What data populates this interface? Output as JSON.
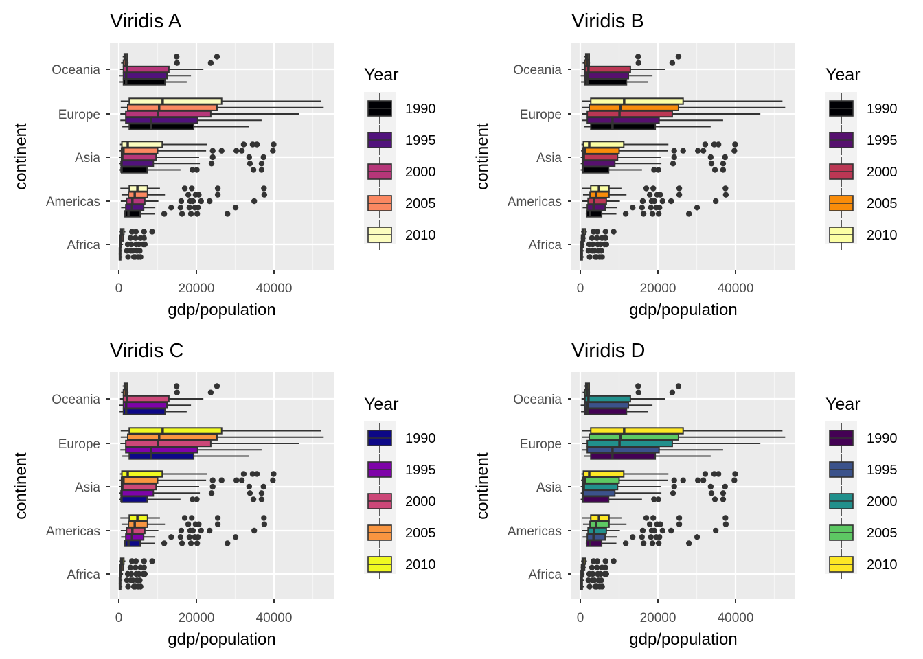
{
  "figure": {
    "panels": [
      "Viridis A",
      "Viridis B",
      "Viridis C",
      "Viridis D"
    ]
  },
  "chart_data": [
    {
      "type": "boxplot",
      "title": "Viridis A",
      "xlabel": "gdp/population",
      "ylabel": "continent",
      "xlim": [
        -2000,
        55000
      ],
      "xticks": [
        0,
        20000,
        40000
      ],
      "xtick_labels": [
        "0",
        "20000",
        "40000"
      ],
      "grid": true,
      "legend": {
        "title": "Year",
        "position": "right",
        "labels": [
          "1990",
          "1995",
          "2000",
          "2005",
          "2010"
        ],
        "colors": [
          "#000004",
          "#51127C",
          "#B63679",
          "#FB8861",
          "#FCFDBF"
        ]
      }
    },
    {
      "type": "boxplot",
      "title": "Viridis B",
      "xlabel": "gdp/population",
      "ylabel": "continent",
      "xlim": [
        -2000,
        55000
      ],
      "xticks": [
        0,
        20000,
        40000
      ],
      "xtick_labels": [
        "0",
        "20000",
        "40000"
      ],
      "grid": true,
      "legend": {
        "title": "Year",
        "position": "right",
        "labels": [
          "1990",
          "1995",
          "2000",
          "2005",
          "2010"
        ],
        "colors": [
          "#000004",
          "#56106E",
          "#BB3754",
          "#F98C0A",
          "#FCFFA4"
        ]
      }
    },
    {
      "type": "boxplot",
      "title": "Viridis C",
      "xlabel": "gdp/population",
      "ylabel": "continent",
      "xlim": [
        -2000,
        55000
      ],
      "xticks": [
        0,
        20000,
        40000
      ],
      "xtick_labels": [
        "0",
        "20000",
        "40000"
      ],
      "grid": true,
      "legend": {
        "title": "Year",
        "position": "right",
        "labels": [
          "1990",
          "1995",
          "2000",
          "2005",
          "2010"
        ],
        "colors": [
          "#0D0887",
          "#7E03A8",
          "#CC4778",
          "#F89540",
          "#F0F921"
        ]
      }
    },
    {
      "type": "boxplot",
      "title": "Viridis D",
      "xlabel": "gdp/population",
      "ylabel": "continent",
      "xlim": [
        -2000,
        55000
      ],
      "xticks": [
        0,
        20000,
        40000
      ],
      "xtick_labels": [
        "0",
        "20000",
        "40000"
      ],
      "grid": true,
      "legend": {
        "title": "Year",
        "position": "right",
        "labels": [
          "1990",
          "1995",
          "2000",
          "2005",
          "2010"
        ],
        "colors": [
          "#440154",
          "#3B528B",
          "#21908C",
          "#5DC863",
          "#FDE725"
        ]
      }
    }
  ],
  "shared_data": {
    "categories": [
      "Africa",
      "Americas",
      "Asia",
      "Europe",
      "Oceania"
    ],
    "groups": [
      "1990",
      "1995",
      "2000",
      "2005",
      "2010"
    ],
    "stats": {
      "Oceania": [
        {
          "lo": 200,
          "q1": 1200,
          "med": 1900,
          "q3": 11900,
          "hi": 17500,
          "out": []
        },
        {
          "lo": 100,
          "q1": 1200,
          "med": 1900,
          "q3": 12400,
          "hi": 18600,
          "out": []
        },
        {
          "lo": 300,
          "q1": 1200,
          "med": 2100,
          "q3": 12900,
          "hi": 21800,
          "out": []
        },
        {
          "lo": 600,
          "q1": 1200,
          "med": 1800,
          "q3": 2300,
          "hi": 2500,
          "out": [
            15000,
            23700
          ]
        },
        {
          "lo": 1000,
          "q1": 1400,
          "med": 1800,
          "q3": 2300,
          "hi": 2400,
          "out": [
            14900,
            25300
          ]
        }
      ],
      "Europe": [
        {
          "lo": 900,
          "q1": 2700,
          "med": 8300,
          "q3": 19300,
          "hi": 33600,
          "out": []
        },
        {
          "lo": 400,
          "q1": 1800,
          "med": 8300,
          "q3": 20300,
          "hi": 36800,
          "out": []
        },
        {
          "lo": 400,
          "q1": 1800,
          "med": 10100,
          "q3": 23700,
          "hi": 46400,
          "out": []
        },
        {
          "lo": 500,
          "q1": 2300,
          "med": 10400,
          "q3": 25300,
          "hi": 52800,
          "out": []
        },
        {
          "lo": 500,
          "q1": 2700,
          "med": 11300,
          "q3": 26500,
          "hi": 52100,
          "out": []
        }
      ],
      "Asia": [
        {
          "lo": 100,
          "q1": 700,
          "med": 700,
          "q3": 7300,
          "hi": 15900,
          "out": [
            19000,
            20100,
            34700,
            36800
          ]
        },
        {
          "lo": 100,
          "q1": 700,
          "med": 700,
          "q3": 8900,
          "hi": 20900,
          "out": [
            23900,
            33800,
            36800
          ]
        },
        {
          "lo": 100,
          "q1": 700,
          "med": 900,
          "q3": 9600,
          "hi": 20700,
          "out": [
            24200,
            33600,
            37300
          ]
        },
        {
          "lo": 200,
          "q1": 700,
          "med": 1200,
          "q3": 10000,
          "hi": 22500,
          "out": [
            24200,
            26500,
            30300,
            31700,
            39700
          ]
        },
        {
          "lo": 300,
          "q1": 800,
          "med": 2300,
          "q3": 11200,
          "hi": 22700,
          "out": [
            32200,
            34500,
            35600,
            39900
          ]
        }
      ],
      "Americas": [
        {
          "lo": 1400,
          "q1": 1600,
          "med": 2500,
          "q3": 5500,
          "hi": 9300,
          "out": [
            11700,
            16300,
            18600,
            20200,
            28000
          ]
        },
        {
          "lo": 600,
          "q1": 1800,
          "med": 3400,
          "q3": 6400,
          "hi": 9400,
          "out": [
            13500,
            15900,
            18200,
            19600,
            20400,
            30100
          ]
        },
        {
          "lo": 500,
          "q1": 2000,
          "med": 3500,
          "q3": 6700,
          "hi": 10200,
          "out": [
            16100,
            18400,
            19100,
            21200,
            23400,
            34900
          ]
        },
        {
          "lo": 700,
          "q1": 2500,
          "med": 4100,
          "q3": 7400,
          "hi": 11900,
          "out": [
            17900,
            19800,
            20600,
            25500,
            37500
          ]
        },
        {
          "lo": 400,
          "q1": 2700,
          "med": 4800,
          "q3": 7400,
          "hi": 10600,
          "out": [
            17000,
            18800,
            25500,
            37400
          ]
        }
      ],
      "Africa": [
        {
          "lo": 100,
          "q1": 150,
          "med": 300,
          "q3": 500,
          "hi": 900,
          "out": [
            2400,
            4200,
            5600,
            3900,
            5000
          ]
        },
        {
          "lo": 100,
          "q1": 150,
          "med": 300,
          "q3": 500,
          "hi": 900,
          "out": [
            2100,
            3100,
            4700,
            3600,
            5400
          ]
        },
        {
          "lo": 100,
          "q1": 200,
          "med": 350,
          "q3": 700,
          "hi": 1100,
          "out": [
            2300,
            3200,
            5200,
            6300,
            4500,
            6700
          ]
        },
        {
          "lo": 100,
          "q1": 300,
          "med": 600,
          "q3": 1100,
          "hi": 1400,
          "out": [
            3000,
            4300,
            5600,
            6500
          ]
        },
        {
          "lo": 200,
          "q1": 500,
          "med": 800,
          "q3": 1300,
          "hi": 1700,
          "out": [
            3400,
            4400,
            6500,
            8600
          ]
        }
      ]
    }
  }
}
